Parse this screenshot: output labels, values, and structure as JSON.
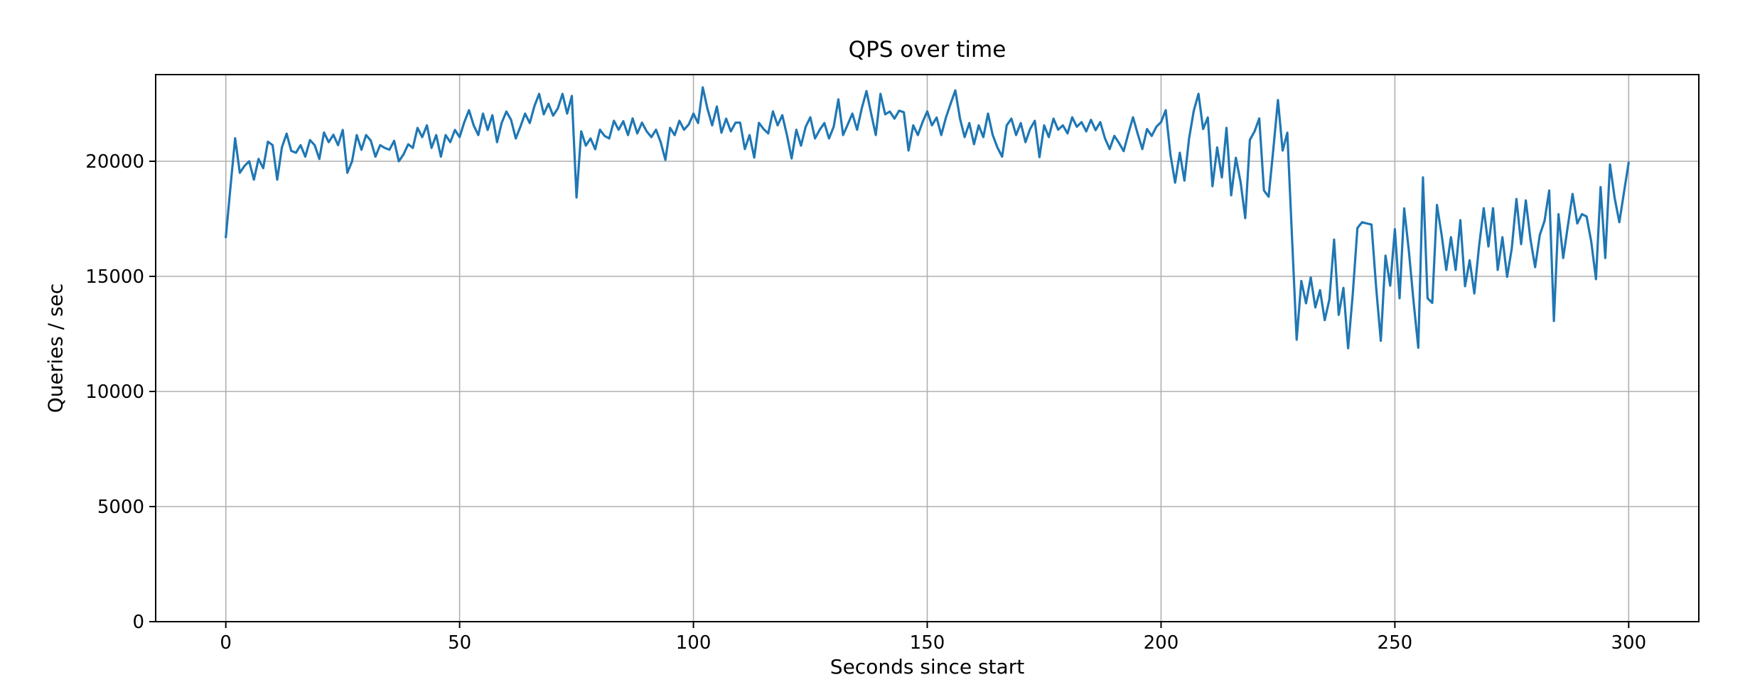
{
  "title": "QPS over time",
  "chart_data": {
    "type": "line",
    "title": "QPS over time",
    "xlabel": "Seconds since start",
    "ylabel": "Queries / sec",
    "x_start": 0,
    "x_step": 1,
    "x_ticks": [
      0,
      50,
      100,
      150,
      200,
      250,
      300
    ],
    "y_ticks": [
      0,
      5000,
      10000,
      15000,
      20000
    ],
    "xlim": [
      -15,
      315
    ],
    "ylim": [
      0,
      23765
    ],
    "grid": true,
    "legend": "none",
    "line_color": "#1f77b4",
    "grid_color": "#b0b0b0",
    "spine_color": "#000000",
    "values": [
      16700,
      18900,
      21000,
      19500,
      19800,
      20000,
      19200,
      20100,
      19700,
      20850,
      20700,
      19200,
      20600,
      21200,
      20450,
      20370,
      20700,
      20200,
      20920,
      20700,
      20100,
      21250,
      20830,
      21150,
      20700,
      21360,
      19500,
      20000,
      21140,
      20500,
      21140,
      20900,
      20200,
      20700,
      20580,
      20500,
      20890,
      20000,
      20300,
      20740,
      20580,
      21450,
      21050,
      21560,
      20580,
      21140,
      20200,
      21140,
      20830,
      21360,
      21050,
      21700,
      22220,
      21560,
      21140,
      22070,
      21360,
      22000,
      20830,
      21670,
      22160,
      21800,
      20990,
      21500,
      22070,
      21660,
      22400,
      22930,
      22040,
      22500,
      21980,
      22300,
      22930,
      22070,
      22840,
      18430,
      21300,
      20680,
      20990,
      20520,
      21370,
      21100,
      20990,
      21760,
      21370,
      21740,
      21140,
      21860,
      21210,
      21680,
      21300,
      21050,
      21370,
      20830,
      20060,
      21450,
      21140,
      21760,
      21370,
      21600,
      22070,
      21660,
      23210,
      22280,
      21560,
      22380,
      21240,
      21850,
      21300,
      21680,
      21680,
      20530,
      21140,
      20160,
      21670,
      21400,
      21210,
      22170,
      21560,
      22000,
      21140,
      20120,
      21370,
      20680,
      21500,
      21910,
      20990,
      21370,
      21660,
      20990,
      21500,
      22690,
      21140,
      21600,
      22070,
      21370,
      22300,
      23050,
      22070,
      21140,
      22930,
      22040,
      22160,
      21850,
      22200,
      22130,
      20470,
      21560,
      21140,
      21700,
      22170,
      21560,
      21900,
      21140,
      21900,
      22500,
      23080,
      21850,
      21050,
      21660,
      20740,
      21560,
      21050,
      22070,
      21140,
      20600,
      20200,
      21560,
      21850,
      21140,
      21660,
      20830,
      21400,
      21760,
      20180,
      21560,
      21050,
      21850,
      21370,
      21560,
      21210,
      21910,
      21500,
      21700,
      21300,
      21800,
      21350,
      21700,
      21000,
      20530,
      21100,
      20800,
      20440,
      21200,
      21910,
      21200,
      20530,
      21400,
      21100,
      21500,
      21700,
      22220,
      20300,
      19070,
      20370,
      19160,
      21000,
      22200,
      22930,
      21400,
      21900,
      18920,
      20600,
      19300,
      21450,
      18520,
      20150,
      19100,
      17530,
      20930,
      21300,
      21860,
      18730,
      18460,
      20500,
      22660,
      20470,
      21240,
      16750,
      12250,
      14800,
      13830,
      14950,
      13650,
      14400,
      13100,
      14000,
      16600,
      13330,
      14500,
      11880,
      14250,
      17100,
      17350,
      17300,
      17250,
      14500,
      12200,
      15900,
      14600,
      17050,
      14050,
      17950,
      16100,
      13900,
      11900,
      19300,
      14050,
      13850,
      18100,
      16800,
      15280,
      16700,
      15280,
      17440,
      14570,
      15700,
      14260,
      16300,
      17960,
      16300,
      17960,
      15280,
      16700,
      14980,
      16200,
      18360,
      16400,
      18300,
      16600,
      15400,
      16800,
      17400,
      18730,
      13060,
      17700,
      15800,
      17200,
      18580,
      17300,
      17700,
      17600,
      16500,
      14880,
      18880,
      15800,
      19860,
      18400,
      17350,
      18650,
      19940
    ]
  }
}
